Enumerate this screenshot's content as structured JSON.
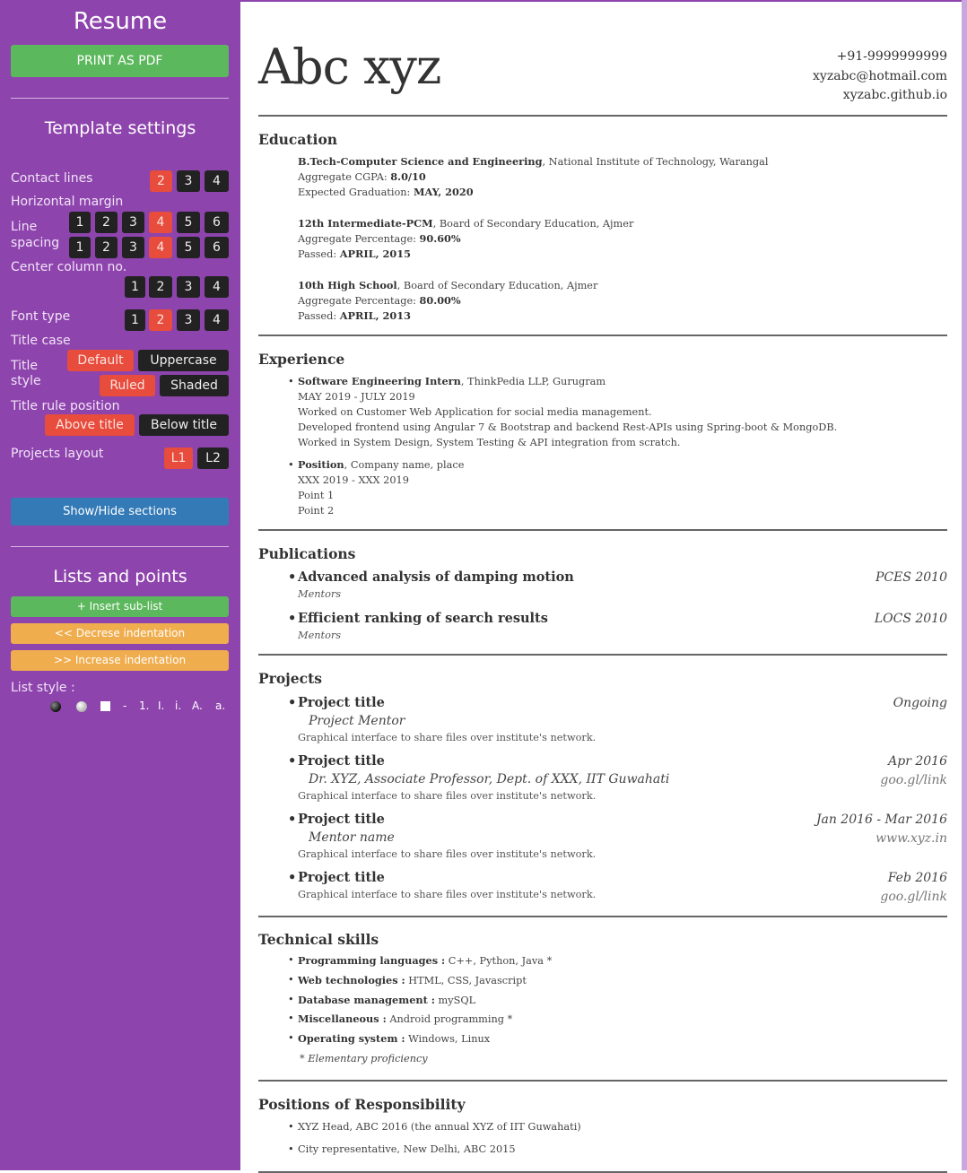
{
  "sidebar": {
    "title": "Resume",
    "print_label": "PRINT AS PDF",
    "template_heading": "Template settings",
    "contact_lines": {
      "label": "Contact lines",
      "options": [
        "2",
        "3",
        "4"
      ],
      "selected": "2"
    },
    "horizontal_margin": {
      "label": "Horizontal margin",
      "options": [
        "1",
        "2",
        "3",
        "4",
        "5",
        "6"
      ],
      "selected": "4"
    },
    "line_spacing": {
      "label_line1": "Line",
      "label_line2": "spacing",
      "options": [
        "1",
        "2",
        "3",
        "4",
        "5",
        "6"
      ],
      "selected": "4"
    },
    "center_column": {
      "label": "Center column no.",
      "options": [
        "1",
        "2",
        "3",
        "4"
      ],
      "selected": ""
    },
    "font_type": {
      "label": "Font type",
      "options": [
        "1",
        "2",
        "3",
        "4"
      ],
      "selected": "2"
    },
    "title_case": {
      "label": "Title case"
    },
    "title_style": {
      "label_line1": "Title",
      "label_line2": "style",
      "case_options": [
        "Default",
        "Uppercase"
      ],
      "style_options": [
        "Ruled",
        "Shaded"
      ],
      "selected_case": "Default",
      "selected_style": "Ruled"
    },
    "title_rule_position": {
      "label": "Title rule position",
      "options": [
        "Above title",
        "Below title"
      ],
      "selected": "Above title"
    },
    "projects_layout": {
      "label": "Projects layout",
      "options": [
        "L1",
        "L2"
      ],
      "selected": "L1"
    },
    "show_hide_label": "Show/Hide sections",
    "lists_heading": "Lists and points",
    "insert_sublist": "+ Insert sub-list",
    "decrease_indent": "<< Decrese indentation",
    "increase_indent": ">> Increase indentation",
    "list_style_label": "List style :",
    "list_styles": [
      "dark-disc",
      "light-disc",
      "square",
      "-",
      "1.",
      "I.",
      "i.",
      "A.",
      "a."
    ],
    "colors": {
      "background": "#8e44ad",
      "selected": "#e74c3c",
      "unselected": "#222222",
      "green": "#5cb85c",
      "blue": "#337ab7",
      "orange": "#f0ad4e"
    }
  },
  "resume": {
    "name": "Abc xyz",
    "phone": "+91-9999999999",
    "email": "xyzabc@hotmail.com",
    "website": "xyzabc.github.io",
    "education": {
      "heading": "Education",
      "entries": [
        {
          "degree": "B.Tech-Computer Science and Engineering",
          "institute": ", National Institute of Technology, Warangal",
          "l2_label": "Aggregate CGPA: ",
          "l2_value": "8.0/10",
          "l3_label": "Expected Graduation: ",
          "l3_value": "MAY, 2020"
        },
        {
          "degree": "12th Intermediate-PCM",
          "institute": ", Board of Secondary Education, Ajmer",
          "l2_label": "Aggregate Percentage: ",
          "l2_value": "90.60%",
          "l3_label": "Passed: ",
          "l3_value": "APRIL, 2015"
        },
        {
          "degree": "10th High School",
          "institute": ", Board of Secondary Education, Ajmer",
          "l2_label": "Aggregate Percentage: ",
          "l2_value": "80.00%",
          "l3_label": "Passed: ",
          "l3_value": "APRIL, 2013"
        }
      ]
    },
    "experience": {
      "heading": "Experience",
      "entries": [
        {
          "role": "Software Engineering Intern",
          "company": ", ThinkPedia LLP, Gurugram",
          "dates": "MAY 2019 - JULY 2019",
          "points": [
            "Worked on Customer Web Application for social media management.",
            "Developed frontend using Angular 7 & Bootstrap and backend Rest-APIs using Spring-boot & MongoDB.",
            "Worked in System Design, System Testing & API integration from scratch."
          ]
        },
        {
          "role": "Position",
          "company": ", Company name, place",
          "dates": "XXX 2019 - XXX 2019",
          "points": [
            "Point 1",
            "Point 2"
          ]
        }
      ]
    },
    "publications": {
      "heading": "Publications",
      "items": [
        {
          "title": "Advanced analysis of damping motion",
          "venue": "PCES 2010",
          "mentors": "Mentors"
        },
        {
          "title": "Efficient ranking of search results",
          "venue": "LOCS 2010",
          "mentors": "Mentors"
        }
      ]
    },
    "projects": {
      "heading": "Projects",
      "items": [
        {
          "title": "Project title",
          "date": "Ongoing",
          "mentor": "Project Mentor",
          "desc": "Graphical interface to share files over institute's network."
        },
        {
          "title": "Project title",
          "date": "Apr 2016",
          "mentor": "Dr. XYZ, Associate Professor, Dept. of XXX, IIT Guwahati",
          "link": "goo.gl/link",
          "desc": "Graphical interface to share files over institute's network."
        },
        {
          "title": "Project title",
          "date": "Jan 2016 - Mar 2016",
          "mentor": "Mentor name",
          "link": "www.xyz.in",
          "desc": "Graphical interface to share files over institute's network."
        },
        {
          "title": "Project title",
          "date": "Feb 2016",
          "link": "goo.gl/link",
          "desc": "Graphical interface to share files over institute's network."
        }
      ]
    },
    "skills": {
      "heading": "Technical skills",
      "items": [
        {
          "label": "Programming languages :",
          "value": " C++, Python, Java *"
        },
        {
          "label": "Web technologies :",
          "value": " HTML, CSS, Javascript"
        },
        {
          "label": "Database management :",
          "value": " mySQL"
        },
        {
          "label": "Miscellaneous :",
          "value": " Android programming *"
        },
        {
          "label": "Operating system :",
          "value": " Windows, Linux"
        }
      ],
      "note": "* Elementary proficiency"
    },
    "responsibility": {
      "heading": "Positions of Responsibility",
      "items": [
        "XYZ Head, ABC 2016 (the annual XYZ of IIT Guwahati)",
        "City representative, New Delhi, ABC 2015"
      ]
    }
  }
}
